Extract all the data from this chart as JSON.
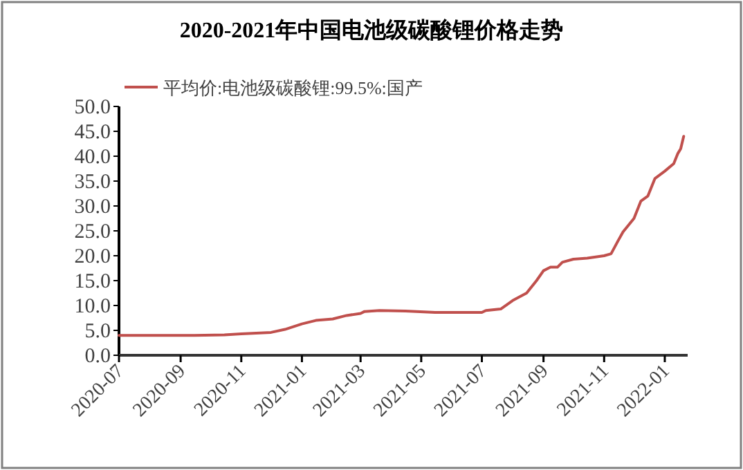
{
  "chart_data": {
    "type": "line",
    "title": "2020-2021年中国电池级碳酸锂价格走势",
    "x": [
      "2020-07-01",
      "2020-08-01",
      "2020-09-01",
      "2020-09-15",
      "2020-10-15",
      "2020-11-01",
      "2020-12-01",
      "2020-12-15",
      "2021-01-01",
      "2021-01-15",
      "2021-02-01",
      "2021-02-15",
      "2021-03-01",
      "2021-03-05",
      "2021-03-20",
      "2021-04-15",
      "2021-05-15",
      "2021-07-01",
      "2021-07-05",
      "2021-07-20",
      "2021-08-01",
      "2021-08-15",
      "2021-08-25",
      "2021-09-01",
      "2021-09-08",
      "2021-09-15",
      "2021-09-20",
      "2021-10-01",
      "2021-10-15",
      "2021-11-01",
      "2021-11-08",
      "2021-11-15",
      "2021-11-20",
      "2021-12-01",
      "2021-12-08",
      "2021-12-15",
      "2021-12-22",
      "2022-01-01",
      "2022-01-10",
      "2022-01-14",
      "2022-01-17",
      "2022-01-20"
    ],
    "series": [
      {
        "name": "平均价:电池级碳酸锂:99.5%:国产",
        "color": "#c0504d",
        "values": [
          4.0,
          4.0,
          4.0,
          4.0,
          4.1,
          4.3,
          4.6,
          5.2,
          6.3,
          7.0,
          7.3,
          8.0,
          8.4,
          8.8,
          9.0,
          8.9,
          8.6,
          8.6,
          9.0,
          9.3,
          11.0,
          12.5,
          15.0,
          17.0,
          17.7,
          17.7,
          18.7,
          19.3,
          19.5,
          20.0,
          20.4,
          23.0,
          24.8,
          27.5,
          31.0,
          32.0,
          35.5,
          37.0,
          38.5,
          40.5,
          41.5,
          44.0
        ]
      }
    ],
    "xlim": [
      "2020-07-01",
      "2022-01-24"
    ],
    "xticks": [
      "2020-07",
      "2020-09",
      "2020-11",
      "2021-01",
      "2021-03",
      "2021-05",
      "2021-07",
      "2021-09",
      "2021-11",
      "2022-01"
    ],
    "ylim": [
      0,
      50
    ],
    "yticks": [
      {
        "value": 0,
        "label": "0.0"
      },
      {
        "value": 5,
        "label": "5.0"
      },
      {
        "value": 10,
        "label": "10.0"
      },
      {
        "value": 15,
        "label": "15.0"
      },
      {
        "value": 20,
        "label": "20.0"
      },
      {
        "value": 25,
        "label": "25.0"
      },
      {
        "value": 30,
        "label": "30.0"
      },
      {
        "value": 35,
        "label": "35.0"
      },
      {
        "value": 40,
        "label": "40.0"
      },
      {
        "value": 45,
        "label": "45.0"
      },
      {
        "value": 50,
        "label": "50.0"
      }
    ],
    "grid": false,
    "legend": "top",
    "line_style": "solid",
    "marker": "none"
  }
}
